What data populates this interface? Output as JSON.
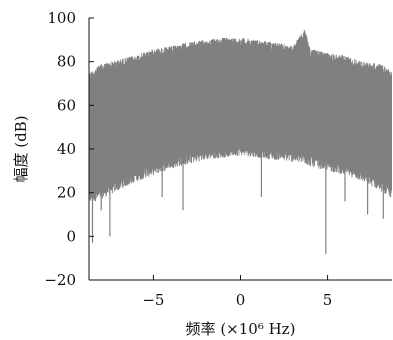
{
  "chart_data": {
    "type": "line",
    "title": "",
    "xlabel": "频率 (×10⁶ Hz)",
    "ylabel": "幅度 (dB)",
    "xlim": [
      -8.7,
      8.7
    ],
    "ylim": [
      -20,
      100
    ],
    "xticks": [
      -5,
      0,
      5
    ],
    "xtick_labels": [
      "−5",
      "0",
      "5"
    ],
    "yticks": [
      100,
      80,
      60,
      40,
      20,
      0,
      -20
    ],
    "ytick_labels": [
      "100",
      "80",
      "60",
      "40",
      "20",
      "0",
      "−20"
    ],
    "grid": false,
    "legend": "none",
    "series": [
      {
        "color": "#808080",
        "envelope": {
          "x": [
            -8.7,
            -8.0,
            -7.0,
            -6.0,
            -5.0,
            -4.0,
            -3.0,
            -2.0,
            -1.0,
            0.0,
            1.0,
            2.0,
            3.0,
            3.7,
            4.0,
            5.0,
            6.0,
            7.0,
            8.0,
            8.7
          ],
          "upper": [
            75,
            79,
            81,
            83,
            86,
            87,
            89,
            90,
            91,
            91,
            90,
            89,
            87,
            95,
            86,
            84,
            83,
            80,
            79,
            76
          ],
          "lower": [
            18,
            20,
            24,
            28,
            31,
            34,
            36,
            38,
            39,
            40,
            39,
            38,
            37,
            36,
            35,
            33,
            31,
            28,
            24,
            20
          ]
        },
        "dips": [
          {
            "x": -8.5,
            "y": -3
          },
          {
            "x": -8.0,
            "y": 12
          },
          {
            "x": -7.5,
            "y": 0
          },
          {
            "x": -4.5,
            "y": 18
          },
          {
            "x": -3.3,
            "y": 12
          },
          {
            "x": 1.2,
            "y": 18
          },
          {
            "x": 4.9,
            "y": -8
          },
          {
            "x": 6.0,
            "y": 16
          },
          {
            "x": 7.3,
            "y": 10
          },
          {
            "x": 8.2,
            "y": 8
          }
        ]
      }
    ]
  },
  "colors": {
    "signal": "#808080",
    "axis": "#111111",
    "background": "#ffffff"
  }
}
